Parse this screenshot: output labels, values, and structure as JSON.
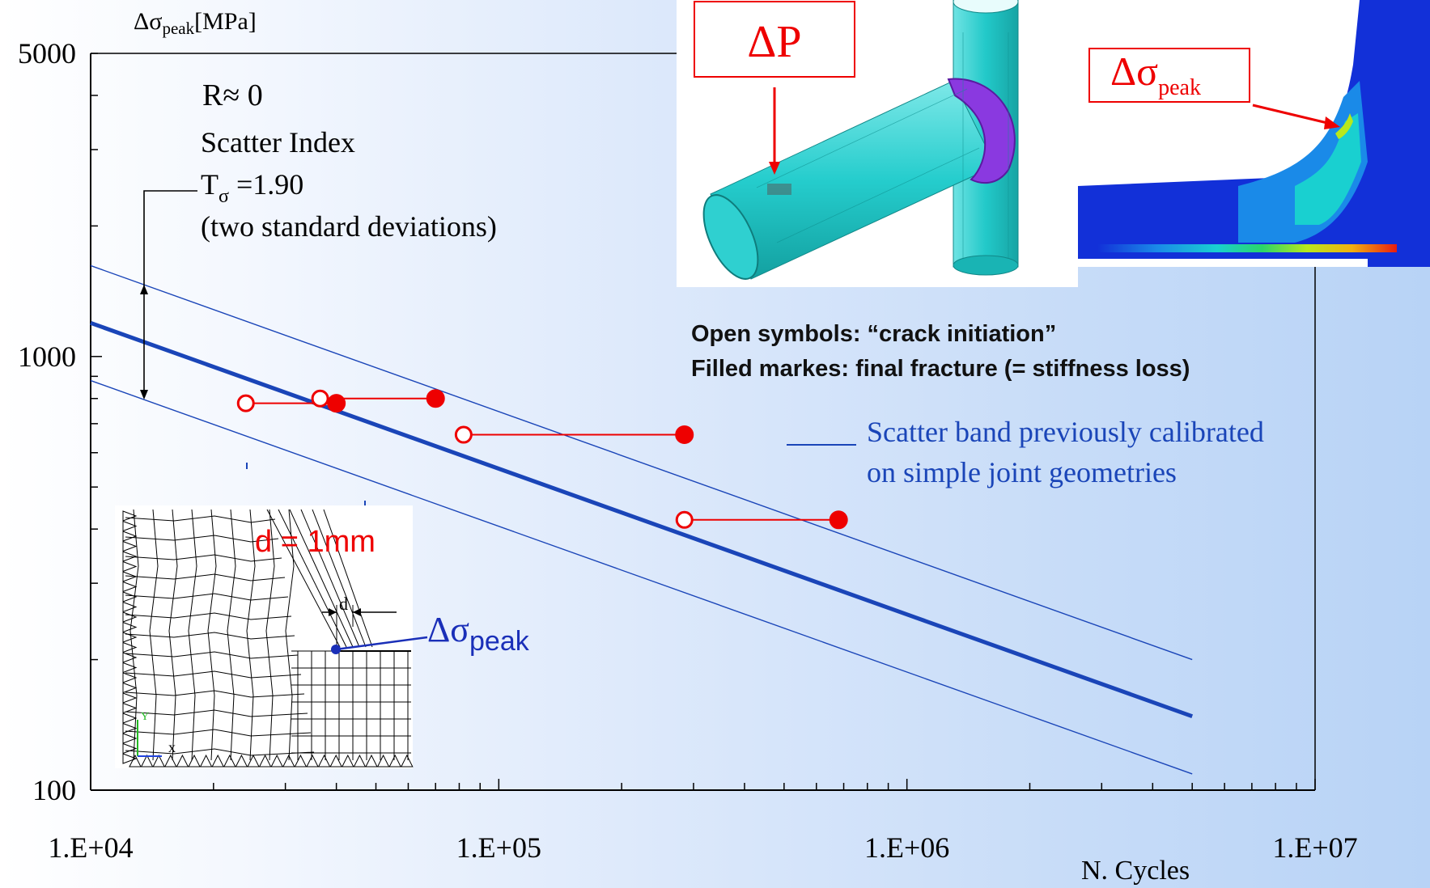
{
  "chart_data": {
    "type": "scatter",
    "title": "",
    "ylabel_prefix": "Δσ",
    "ylabel_sub": "peak",
    "ylabel_suffix": "[MPa]",
    "xlabel": "N. Cycles",
    "x_scale": "log",
    "y_scale": "log",
    "xlim": [
      10000,
      10000000
    ],
    "ylim": [
      100,
      5000
    ],
    "x_tick_labels": [
      "1.E+04",
      "1.E+05",
      "1.E+06",
      "1.E+07"
    ],
    "y_tick_labels": [
      "5000",
      "1000",
      "100"
    ],
    "x_tick_values": [
      10000,
      100000,
      1000000,
      10000000
    ],
    "y_tick_values": [
      5000,
      1000,
      100
    ],
    "grid": false,
    "series": [
      {
        "marker": "open-circle",
        "color": "#ee0000",
        "x": [
          24000,
          36500,
          82000,
          285000
        ],
        "y": [
          780,
          800,
          660,
          420
        ]
      },
      {
        "marker": "filled-circle",
        "color": "#ee0000",
        "x": [
          40000,
          70000,
          285000,
          680000
        ],
        "y": [
          780,
          800,
          660,
          420
        ]
      }
    ],
    "lines": [
      {
        "style": "mean",
        "color": "#1a45b8",
        "x": [
          10000,
          5000000
        ],
        "y": [
          1195,
          148
        ]
      },
      {
        "style": "band",
        "color": "#1a45b8",
        "x": [
          10000,
          5000000
        ],
        "y": [
          1620,
          200
        ]
      },
      {
        "style": "band",
        "color": "#1a45b8",
        "x": [
          10000,
          5000000
        ],
        "y": [
          880,
          109
        ]
      }
    ],
    "connectors": [
      {
        "x": [
          24000,
          40000
        ],
        "y": [
          780,
          780
        ]
      },
      {
        "x": [
          36500,
          70000
        ],
        "y": [
          800,
          800
        ]
      },
      {
        "x": [
          82000,
          285000
        ],
        "y": [
          660,
          660
        ]
      },
      {
        "x": [
          285000,
          680000
        ],
        "y": [
          420,
          420
        ]
      }
    ],
    "annotations": {
      "r_ratio": "R≈ 0",
      "scatter_index": "Scatter Index",
      "t_sigma_prefix": "T",
      "t_sigma_sub": "σ",
      "t_sigma_value": " =1.90",
      "std_note": "(two standard deviations)",
      "open_symbols": "Open symbols: “crack initiation”",
      "filled_marks": "Filled markes: final fracture (= stiffness loss)",
      "scatter_band_line1": "Scatter band previously calibrated",
      "scatter_band_line2": "on simple joint geometries",
      "load_label": "ΔP",
      "peak_label_prefix": "Δσ",
      "peak_label_sub": "peak",
      "d_value": "d = 1mm",
      "d_symbol": "d",
      "mesh_axis_x": "x",
      "mesh_axis_y": "Y",
      "peak_inset_label_prefix": "Δσ",
      "peak_inset_label_sub": "peak"
    }
  },
  "colors": {
    "red": "#ee0000",
    "blue": "#1a45b8",
    "cyan": "#22c9c9",
    "purple": "#7a24c8",
    "fea_blue": "#1230d8"
  }
}
